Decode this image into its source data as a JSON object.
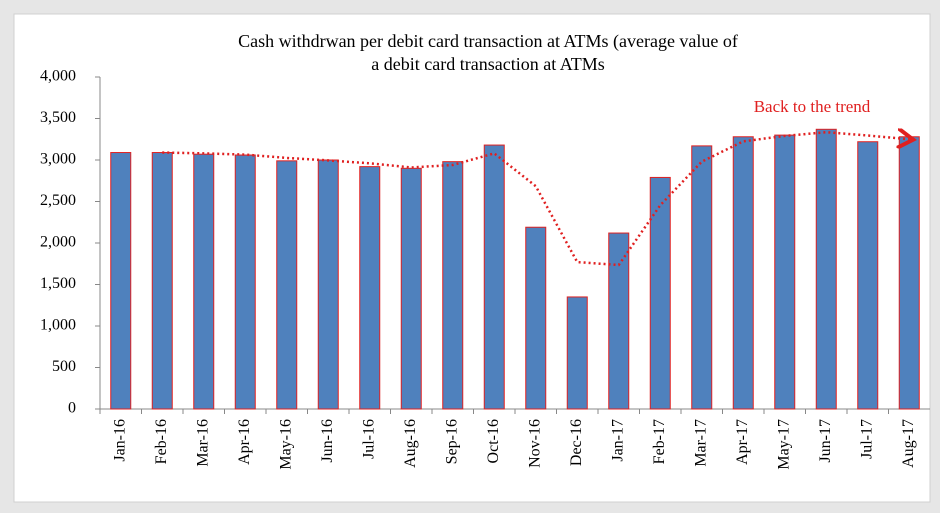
{
  "chart_data": {
    "type": "bar",
    "title": [
      "Cash withdrwan per debit card transaction at ATMs (average value of",
      "a debit card transaction at ATMs"
    ],
    "categories": [
      "Jan-16",
      "Feb-16",
      "Mar-16",
      "Apr-16",
      "May-16",
      "Jun-16",
      "Jul-16",
      "Aug-16",
      "Sep-16",
      "Oct-16",
      "Nov-16",
      "Dec-16",
      "Jan-17",
      "Feb-17",
      "Mar-17",
      "Apr-17",
      "May-17",
      "Jun-17",
      "Jul-17",
      "Aug-17"
    ],
    "values": [
      3090,
      3090,
      3070,
      3060,
      2990,
      3000,
      2920,
      2900,
      2980,
      3180,
      2190,
      1350,
      2120,
      2790,
      3170,
      3280,
      3300,
      3370,
      3220,
      3280
    ],
    "color": "#4f81bd",
    "edge_color": "#e02020",
    "series": [
      {
        "type": "line",
        "color": "#e02020",
        "values": [
          null,
          3090,
          3080,
          3065,
          3025,
          2995,
          2960,
          2910,
          2940,
          3080,
          2685,
          1770,
          1735,
          2455,
          2980,
          3225,
          3290,
          3335,
          3295,
          3250
        ]
      }
    ],
    "annotation": "Back to the trend",
    "ylim": [
      0,
      4000
    ],
    "yticks": [
      0,
      500,
      {
        "value": 1000,
        "label": "1,000"
      },
      {
        "value": 1500,
        "label": "1,500"
      },
      {
        "value": 2000,
        "label": "2,000"
      },
      {
        "value": 2500,
        "label": "2,500"
      },
      {
        "value": 3000,
        "label": "3,000"
      },
      {
        "value": 3500,
        "label": "3,500"
      },
      {
        "value": 4000,
        "label": "4,000"
      }
    ],
    "grid": false
  }
}
